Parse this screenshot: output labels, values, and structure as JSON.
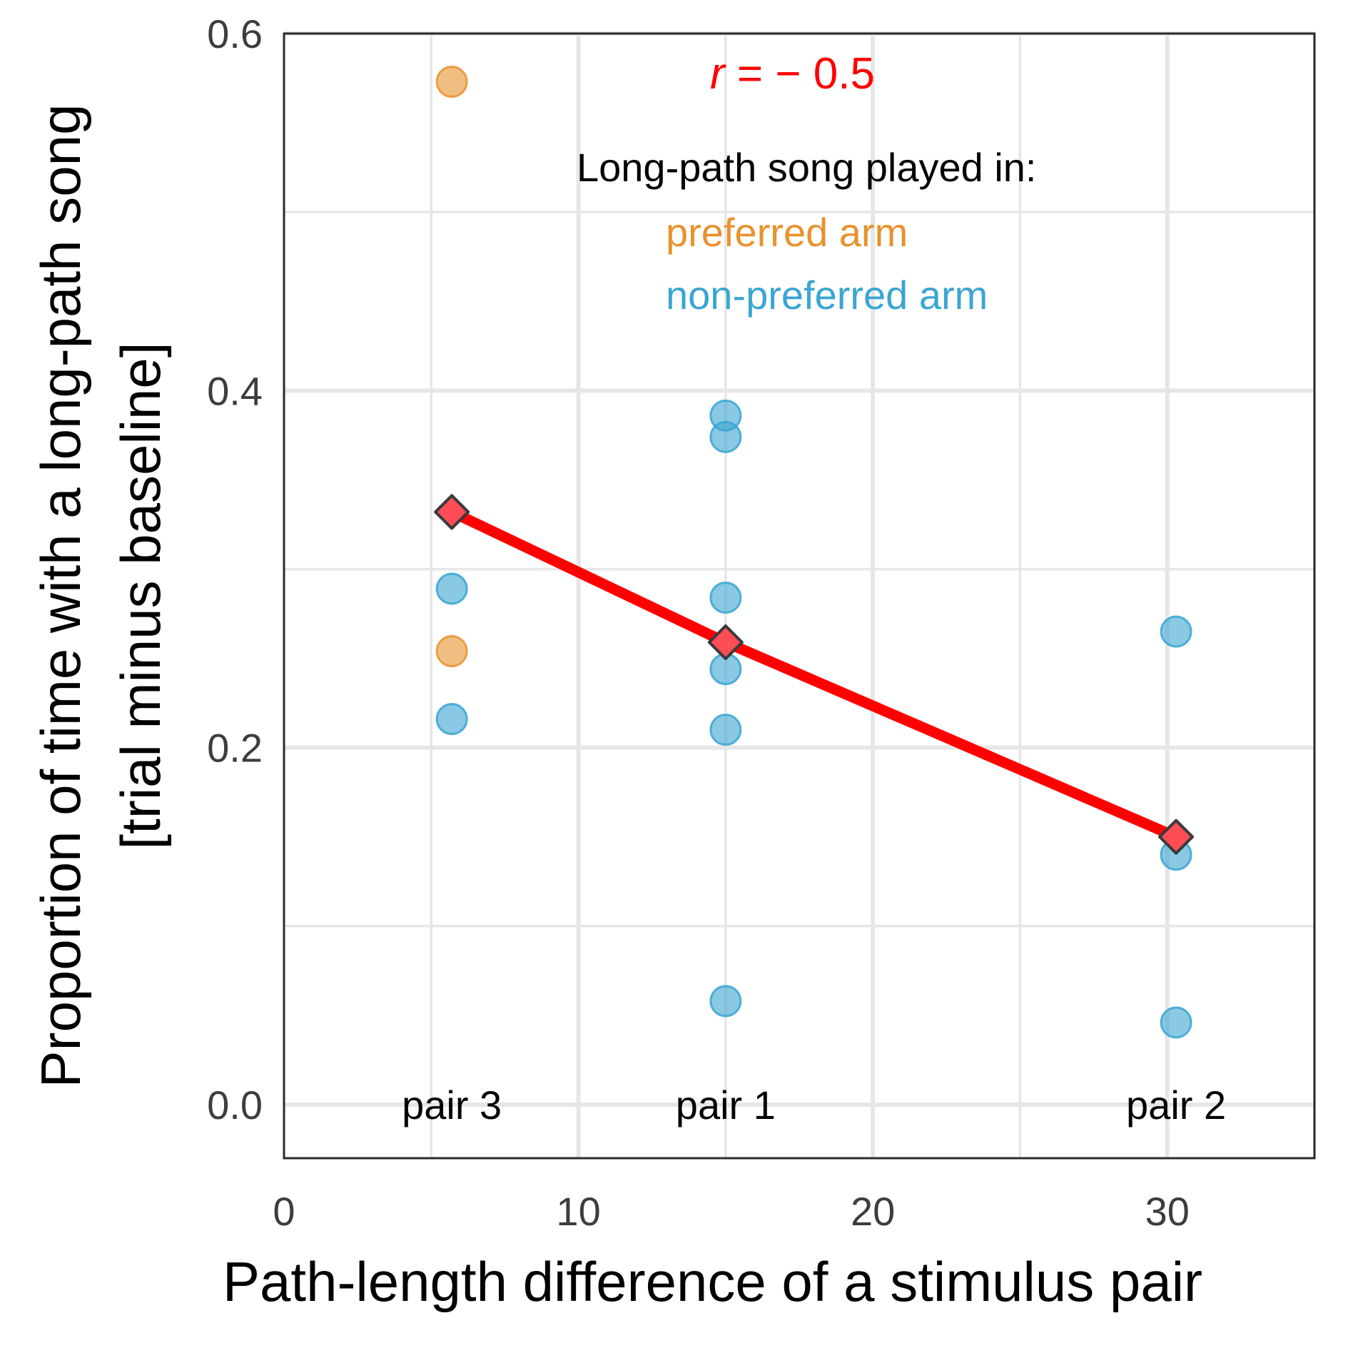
{
  "chart_data": {
    "type": "scatter",
    "xlabel": "Path-length difference of a stimulus pair",
    "ylabel_lines": [
      "Proportion of time with a long-path song",
      "[trial minus baseline]"
    ],
    "xlim": [
      0,
      35
    ],
    "ylim": [
      -0.03,
      0.6
    ],
    "x_ticks": [
      0,
      10,
      20,
      30
    ],
    "y_ticks": [
      0.0,
      0.2,
      0.4,
      0.6
    ],
    "y_tick_labels": [
      "0.0",
      "0.2",
      "0.4",
      "0.6"
    ],
    "grid": true,
    "annotation": {
      "r_symbol": "r",
      "r_value_text": " = − 0.5",
      "color": "#ff0000"
    },
    "legend": {
      "title": "Long-path song played in:",
      "placement": "top-right",
      "entries": [
        {
          "label": "preferred arm",
          "color": "#e8922e"
        },
        {
          "label": "non-preferred arm",
          "color": "#3aa5d2"
        }
      ]
    },
    "pair_labels": [
      {
        "text": "pair 3",
        "x": 5.7
      },
      {
        "text": "pair 1",
        "x": 15
      },
      {
        "text": "pair 2",
        "x": 30.3
      }
    ],
    "series": [
      {
        "name": "preferred arm",
        "color": "#e8922e",
        "points": [
          {
            "x": 5.7,
            "y": 0.573
          },
          {
            "x": 5.7,
            "y": 0.254
          }
        ]
      },
      {
        "name": "non-preferred arm",
        "color": "#3aa5d2",
        "points": [
          {
            "x": 5.7,
            "y": 0.289
          },
          {
            "x": 5.7,
            "y": 0.216
          },
          {
            "x": 15,
            "y": 0.386
          },
          {
            "x": 15,
            "y": 0.374
          },
          {
            "x": 15,
            "y": 0.284
          },
          {
            "x": 15,
            "y": 0.244
          },
          {
            "x": 15,
            "y": 0.21
          },
          {
            "x": 15,
            "y": 0.058
          },
          {
            "x": 30.3,
            "y": 0.265
          },
          {
            "x": 30.3,
            "y": 0.14
          },
          {
            "x": 30.3,
            "y": 0.046
          }
        ]
      }
    ],
    "means": {
      "color": "#ff0000",
      "points": [
        {
          "x": 5.7,
          "y": 0.332
        },
        {
          "x": 15,
          "y": 0.259
        },
        {
          "x": 30.3,
          "y": 0.15
        }
      ]
    }
  }
}
